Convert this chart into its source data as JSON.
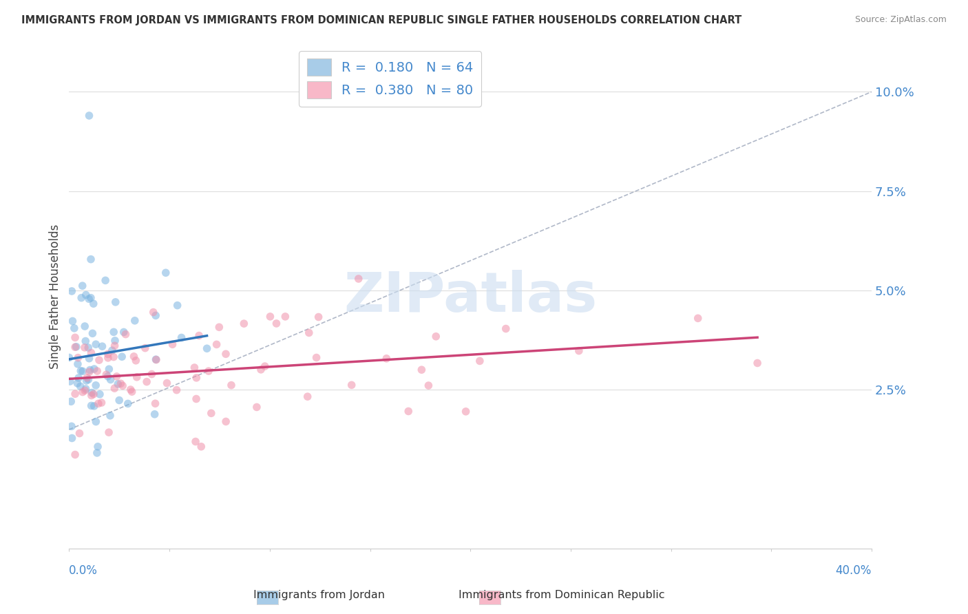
{
  "title": "IMMIGRANTS FROM JORDAN VS IMMIGRANTS FROM DOMINICAN REPUBLIC SINGLE FATHER HOUSEHOLDS CORRELATION CHART",
  "source": "Source: ZipAtlas.com",
  "ylabel": "Single Father Households",
  "yticks": [
    "2.5%",
    "5.0%",
    "7.5%",
    "10.0%"
  ],
  "ytick_vals": [
    0.025,
    0.05,
    0.075,
    0.1
  ],
  "xlim": [
    0.0,
    0.4
  ],
  "ylim": [
    -0.015,
    0.112
  ],
  "jordan_R": 0.18,
  "jordan_N": 64,
  "dr_R": 0.38,
  "dr_N": 80,
  "jordan_scatter_color": "#7ab4e0",
  "dr_scatter_color": "#f090aa",
  "jordan_legend_color": "#a8cce8",
  "dr_legend_color": "#f8b8c8",
  "background_color": "#ffffff",
  "grid_color": "#dddddd",
  "legend_label_jordan": "Immigrants from Jordan",
  "legend_label_dr": "Immigrants from Dominican Republic",
  "jordan_trend_color": "#3377bb",
  "dr_trend_color": "#cc4477",
  "dashed_line_color": "#b0b8c8",
  "text_color_blue": "#4488cc",
  "title_color": "#333333",
  "source_color": "#888888"
}
